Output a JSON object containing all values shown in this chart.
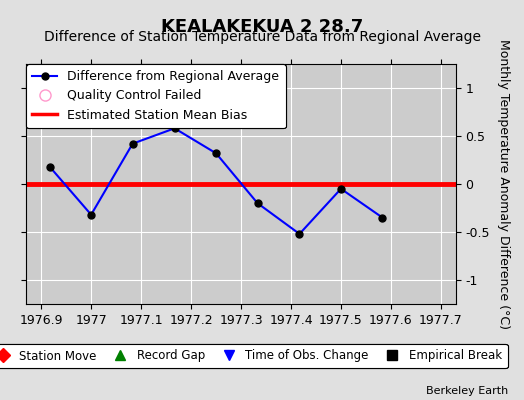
{
  "title": "KEALAKEKUA 2 28.7",
  "subtitle": "Difference of Station Temperature Data from Regional Average",
  "x_data": [
    1976.917,
    1977.0,
    1977.083,
    1977.167,
    1977.25,
    1977.333,
    1977.417,
    1977.5,
    1977.583
  ],
  "y_data": [
    0.18,
    -0.32,
    0.42,
    0.58,
    0.32,
    -0.2,
    -0.52,
    -0.05,
    -0.35
  ],
  "bias_value": 0.0,
  "xlim": [
    1976.87,
    1977.73
  ],
  "ylim": [
    -1.25,
    1.25
  ],
  "xticks": [
    1976.9,
    1977.0,
    1977.1,
    1977.2,
    1977.3,
    1977.4,
    1977.5,
    1977.6,
    1977.7
  ],
  "xticklabels": [
    "1976.9",
    "1977",
    "1977.1",
    "1977.2",
    "1977.3",
    "1977.4",
    "1977.5",
    "1977.6",
    "1977.7"
  ],
  "yticks": [
    -1,
    -0.5,
    0,
    0.5,
    1
  ],
  "yticklabels": [
    "-1",
    "-0.5",
    "0",
    "0.5",
    "1"
  ],
  "ylabel": "Monthly Temperature Anomaly Difference (°C)",
  "line_color": "#0000ff",
  "marker_color": "#000000",
  "bias_color": "#ff0000",
  "background_color": "#e0e0e0",
  "plot_bg_color": "#cccccc",
  "grid_color": "#ffffff",
  "title_fontsize": 13,
  "subtitle_fontsize": 10,
  "tick_fontsize": 9,
  "ylabel_fontsize": 9,
  "legend_fontsize": 9
}
